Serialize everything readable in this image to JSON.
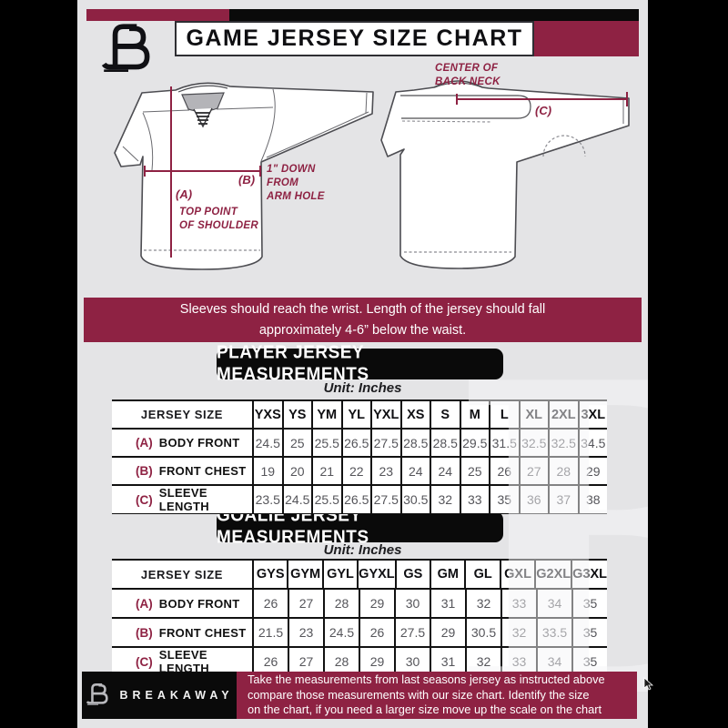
{
  "palette": {
    "maroon": "#8e2243",
    "black": "#0a0a0a",
    "background": "#e4e4e6",
    "cell_white": "#ffffff"
  },
  "header": {
    "title": "GAME JERSEY SIZE CHART",
    "brand_letter": "B"
  },
  "diagram": {
    "front": {
      "a_tag": "(A)",
      "a_line1": "TOP POINT",
      "a_line2": "OF SHOULDER",
      "b_tag": "(B)",
      "b_line1": "1\" DOWN",
      "b_line2": "FROM",
      "b_line3": "ARM HOLE"
    },
    "back": {
      "c_tag": "(C)",
      "c_line1": "CENTER OF",
      "c_line2": "BACK NECK"
    }
  },
  "notice_banner": {
    "line1": "Sleeves should reach the wrist. Length of the jersey should fall",
    "line2": "approximately 4-6” below the waist."
  },
  "player_section": {
    "heading": "PLAYER JERSEY MEASUREMENTS",
    "unit_label": "Unit: Inches"
  },
  "goalie_section": {
    "heading": "GOALIE JERSEY MEASUREMENTS",
    "unit_label": "Unit: Inches"
  },
  "player_table": {
    "corner_label": "JERSEY SIZE",
    "columns": [
      "YXS",
      "YS",
      "YM",
      "YL",
      "YXL",
      "XS",
      "S",
      "M",
      "L",
      "XL",
      "2XL",
      "3XL"
    ],
    "rows": [
      {
        "tag": "(A)",
        "label": "BODY FRONT",
        "values": [
          "24.5",
          "25",
          "25.5",
          "26.5",
          "27.5",
          "28.5",
          "28.5",
          "29.5",
          "31.5",
          "32.5",
          "32.5",
          "34.5"
        ]
      },
      {
        "tag": "(B)",
        "label": "FRONT CHEST",
        "values": [
          "19",
          "20",
          "21",
          "22",
          "23",
          "24",
          "24",
          "25",
          "26",
          "27",
          "28",
          "29"
        ]
      },
      {
        "tag": "(C)",
        "label": "SLEEVE LENGTH",
        "values": [
          "23.5",
          "24.5",
          "25.5",
          "26.5",
          "27.5",
          "30.5",
          "32",
          "33",
          "35",
          "36",
          "37",
          "38"
        ]
      }
    ]
  },
  "goalie_table": {
    "corner_label": "JERSEY SIZE",
    "columns": [
      "GYS",
      "GYM",
      "GYL",
      "GYXL",
      "GS",
      "GM",
      "GL",
      "GXL",
      "G2XL",
      "G3XL"
    ],
    "rows": [
      {
        "tag": "(A)",
        "label": "BODY FRONT",
        "values": [
          "26",
          "27",
          "28",
          "29",
          "30",
          "31",
          "32",
          "33",
          "34",
          "35"
        ]
      },
      {
        "tag": "(B)",
        "label": "FRONT CHEST",
        "values": [
          "21.5",
          "23",
          "24.5",
          "26",
          "27.5",
          "29",
          "30.5",
          "32",
          "33.5",
          "35"
        ]
      },
      {
        "tag": "(C)",
        "label": "SLEEVE LENGTH",
        "values": [
          "26",
          "27",
          "28",
          "29",
          "30",
          "31",
          "32",
          "33",
          "34",
          "35"
        ]
      }
    ]
  },
  "footer": {
    "brand": "BREAKAWAY",
    "note_line1": "Take the measurements from last seasons jersey as instructed above",
    "note_line2": "compare those measurements with our size chart. Identify the size",
    "note_line3": "on the chart, if you need a larger size move up the scale on the chart"
  },
  "watermark_letter": "B"
}
